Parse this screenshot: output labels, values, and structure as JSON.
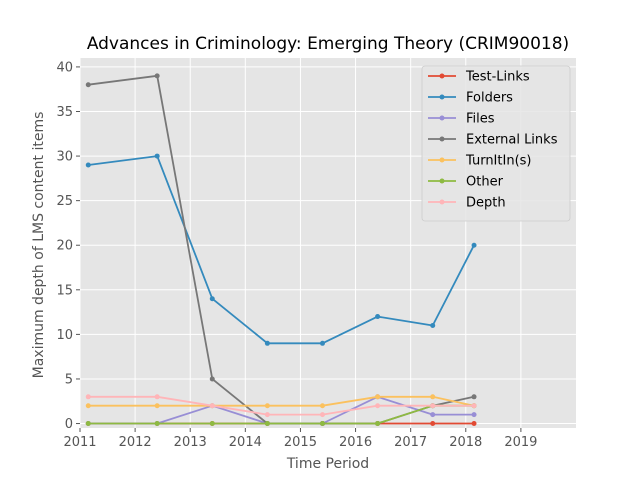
{
  "chart_data": {
    "type": "line",
    "title": "Advances in Criminology: Emerging Theory (CRIM90018)",
    "xlabel": "Time Period",
    "ylabel": "Maximum depth of LMS content items",
    "xlim": [
      2011,
      2020
    ],
    "ylim": [
      -0.5,
      41
    ],
    "xticks": [
      2011,
      2012,
      2013,
      2014,
      2015,
      2016,
      2017,
      2018,
      2019
    ],
    "yticks": [
      0,
      5,
      10,
      15,
      20,
      25,
      30,
      35,
      40
    ],
    "x": [
      2011.15,
      2012.4,
      2013.4,
      2014.4,
      2015.4,
      2016.4,
      2017.4,
      2018.15
    ],
    "grid": true,
    "legend_position": "top-right",
    "series": [
      {
        "name": "Test-Links",
        "color": "#e24a33",
        "values": [
          0,
          0,
          0,
          0,
          0,
          0,
          0,
          0
        ]
      },
      {
        "name": "Folders",
        "color": "#348abd",
        "values": [
          29,
          30,
          14,
          9,
          9,
          12,
          11,
          20
        ]
      },
      {
        "name": "Files",
        "color": "#988ed5",
        "values": [
          0,
          0,
          2,
          0,
          0,
          3,
          1,
          1
        ]
      },
      {
        "name": "External Links",
        "color": "#777777",
        "values": [
          38,
          39,
          5,
          0,
          0,
          0,
          2,
          3
        ]
      },
      {
        "name": "TurnItIn(s)",
        "color": "#fbc15e",
        "values": [
          2,
          2,
          2,
          2,
          2,
          3,
          3,
          2
        ]
      },
      {
        "name": "Other",
        "color": "#8eba42",
        "values": [
          0,
          0,
          0,
          0,
          0,
          0,
          2,
          2
        ]
      },
      {
        "name": "Depth",
        "color": "#ffb5b8",
        "values": [
          3,
          3,
          2,
          1,
          1,
          2,
          2,
          2
        ]
      }
    ]
  }
}
